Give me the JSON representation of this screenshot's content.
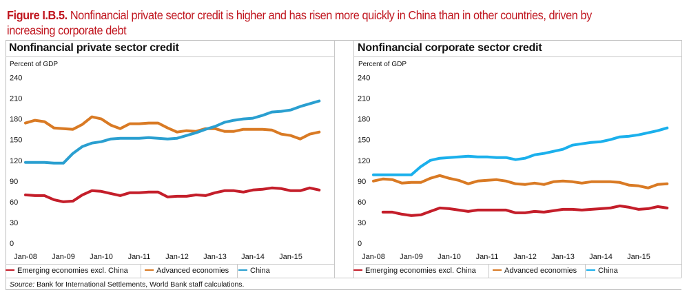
{
  "figure": {
    "label": "Figure I.B.5.",
    "title": "Nonfinancial private sector credit is higher and has risen more quickly in China than in other countries, driven by increasing corporate debt",
    "title_color": "#c0161f"
  },
  "source": {
    "label": "Source:",
    "text": " Bank for International Settlements, World Bank staff calculations."
  },
  "legend": [
    {
      "name": "Emerging economies excl. China",
      "color": "#c41e2a"
    },
    {
      "name": "Advanced economies",
      "color": "#d97a24"
    },
    {
      "name": "China",
      "color": "#2a9fd0"
    }
  ],
  "chart_data": [
    {
      "type": "line",
      "title": "Nonfinancial private sector credit",
      "ylabel": "Percent of GDP",
      "xlabel": "",
      "ylim": [
        0,
        240
      ],
      "yticks": [
        0,
        30,
        60,
        90,
        120,
        150,
        180,
        210,
        240
      ],
      "xtick_labels": [
        "Jan-08",
        "Jan-09",
        "Jan-10",
        "Jan-11",
        "Jan-12",
        "Jan-13",
        "Jan-14",
        "Jan-15"
      ],
      "x_frequency": "quarterly, Q1-2008 to Q4-2015",
      "grid": false,
      "legend_position": "bottom",
      "series": [
        {
          "name": "Emerging economies excl. China",
          "color": "#c41e2a",
          "values": [
            70,
            69,
            69,
            63,
            60,
            61,
            70,
            76,
            75,
            72,
            69,
            73,
            73,
            74,
            74,
            67,
            68,
            68,
            70,
            69,
            73,
            76,
            76,
            74,
            77,
            78,
            80,
            79,
            76,
            76,
            80,
            77
          ]
        },
        {
          "name": "Advanced economies",
          "color": "#d97a24",
          "values": [
            174,
            178,
            176,
            167,
            166,
            165,
            172,
            183,
            180,
            171,
            166,
            173,
            173,
            174,
            174,
            167,
            161,
            163,
            162,
            166,
            166,
            162,
            162,
            165,
            165,
            165,
            164,
            158,
            156,
            151,
            158,
            161
          ]
        },
        {
          "name": "China",
          "color": "#2a9fd0",
          "values": [
            117,
            117,
            117,
            116,
            116,
            130,
            140,
            145,
            147,
            151,
            152,
            152,
            152,
            153,
            152,
            151,
            152,
            156,
            160,
            165,
            169,
            175,
            178,
            180,
            181,
            185,
            190,
            191,
            193,
            198,
            202,
            206
          ]
        }
      ]
    },
    {
      "type": "line",
      "title": "Nonfinancial corporate sector credit",
      "ylabel": "Percent of GDP",
      "xlabel": "",
      "ylim": [
        0,
        240
      ],
      "yticks": [
        0,
        30,
        60,
        90,
        120,
        150,
        180,
        210,
        240
      ],
      "xtick_labels": [
        "Jan-08",
        "Jan-09",
        "Jan-10",
        "Jan-11",
        "Jan-12",
        "Jan-13",
        "Jan-14",
        "Jan-15"
      ],
      "x_frequency": "quarterly, Q1-2008 to Q4-2015",
      "grid": false,
      "legend_position": "bottom",
      "series": [
        {
          "name": "Emerging economies excl. China",
          "color": "#c41e2a",
          "values": [
            null,
            45,
            45,
            42,
            40,
            41,
            46,
            51,
            50,
            48,
            46,
            48,
            48,
            48,
            48,
            44,
            44,
            46,
            45,
            47,
            49,
            49,
            48,
            49,
            50,
            51,
            54,
            52,
            49,
            50,
            53,
            51
          ]
        },
        {
          "name": "Advanced economies",
          "color": "#d97a24",
          "values": [
            90,
            93,
            92,
            87,
            88,
            88,
            94,
            98,
            94,
            91,
            86,
            90,
            91,
            92,
            90,
            86,
            85,
            87,
            85,
            89,
            90,
            89,
            87,
            89,
            89,
            89,
            88,
            84,
            83,
            80,
            85,
            86
          ]
        },
        {
          "name": "China",
          "color": "#1bb0ec",
          "values": [
            99,
            99,
            99,
            99,
            99,
            111,
            120,
            123,
            124,
            125,
            126,
            125,
            125,
            124,
            124,
            121,
            123,
            128,
            130,
            133,
            136,
            142,
            144,
            146,
            147,
            150,
            154,
            155,
            157,
            160,
            163,
            167
          ]
        }
      ]
    }
  ]
}
